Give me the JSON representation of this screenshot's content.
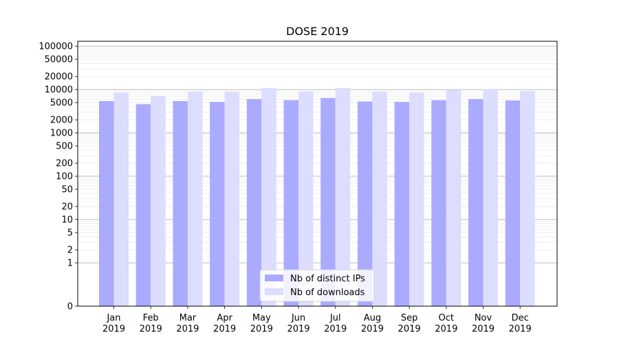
{
  "chart_data": {
    "type": "bar",
    "title": "DOSE 2019",
    "xlabel": "",
    "ylabel": "",
    "yscale": "symlog",
    "ylim": [
      0,
      130000
    ],
    "grid": "horizontal",
    "legend_position": "bottom-center",
    "categories": [
      [
        "Jan",
        "2019"
      ],
      [
        "Feb",
        "2019"
      ],
      [
        "Mar",
        "2019"
      ],
      [
        "Apr",
        "2019"
      ],
      [
        "May",
        "2019"
      ],
      [
        "Jun",
        "2019"
      ],
      [
        "Jul",
        "2019"
      ],
      [
        "Aug",
        "2019"
      ],
      [
        "Sep",
        "2019"
      ],
      [
        "Oct",
        "2019"
      ],
      [
        "Nov",
        "2019"
      ],
      [
        "Dec",
        "2019"
      ]
    ],
    "yticks": [
      {
        "value": 0,
        "label": "0"
      },
      {
        "value": 1,
        "label": "1"
      },
      {
        "value": 2,
        "label": "2"
      },
      {
        "value": 5,
        "label": "5"
      },
      {
        "value": 10,
        "label": "10"
      },
      {
        "value": 20,
        "label": "20"
      },
      {
        "value": 50,
        "label": "50"
      },
      {
        "value": 100,
        "label": "100"
      },
      {
        "value": 200,
        "label": "200"
      },
      {
        "value": 500,
        "label": "500"
      },
      {
        "value": 1000,
        "label": "1000"
      },
      {
        "value": 2000,
        "label": "2000"
      },
      {
        "value": 5000,
        "label": "5000"
      },
      {
        "value": 10000,
        "label": "10000"
      },
      {
        "value": 20000,
        "label": "20000"
      },
      {
        "value": 50000,
        "label": "50000"
      },
      {
        "value": 100000,
        "label": "100000"
      }
    ],
    "series": [
      {
        "name": "Nb of distinct IPs",
        "color": "#aaaaff",
        "values": [
          5400,
          4600,
          5400,
          5200,
          6000,
          5700,
          6400,
          5300,
          5200,
          5700,
          6000,
          5600
        ]
      },
      {
        "name": "Nb of downloads",
        "color": "#ddddff",
        "values": [
          8500,
          7200,
          9000,
          8800,
          10800,
          9100,
          10800,
          9000,
          8500,
          9700,
          10100,
          9300
        ]
      }
    ]
  }
}
